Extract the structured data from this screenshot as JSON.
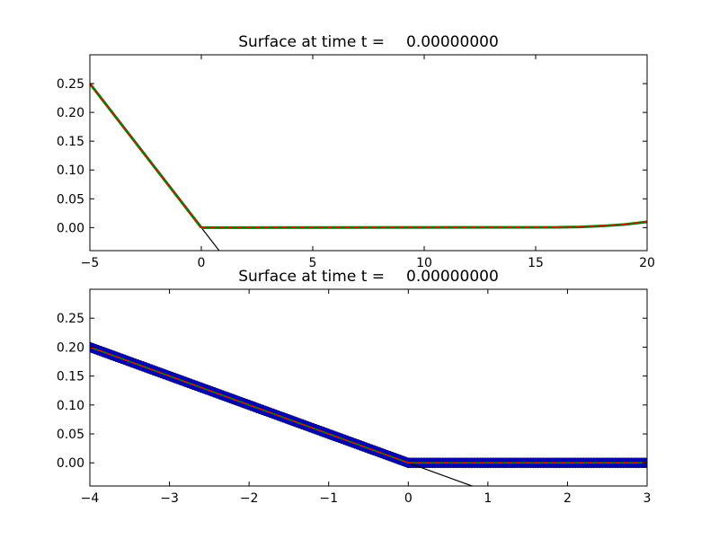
{
  "chart_data": [
    {
      "type": "line",
      "title_prefix": "Surface at time t =",
      "title_value": "0.00000000",
      "xlim": [
        -5,
        20
      ],
      "ylim": [
        -0.04,
        0.3
      ],
      "xticks": [
        -5,
        0,
        5,
        10,
        15,
        20
      ],
      "xtick_labels": [
        "−5",
        "0",
        "5",
        "10",
        "15",
        "20"
      ],
      "yticks": [
        0.0,
        0.05,
        0.1,
        0.15,
        0.2,
        0.25
      ],
      "ytick_labels": [
        "0.00",
        "0.05",
        "0.10",
        "0.15",
        "0.20",
        "0.25"
      ],
      "grid": false,
      "series": [
        {
          "color": "#000000",
          "style": "solid",
          "width": 1.2,
          "x": [
            -5,
            0.8
          ],
          "y": [
            0.25,
            -0.04
          ]
        },
        {
          "color": "#008000",
          "style": "solid",
          "width": 3,
          "x": [
            -5,
            0,
            16,
            17,
            18,
            19,
            20
          ],
          "y": [
            0.25,
            0.0,
            0.0005,
            0.0012,
            0.0028,
            0.0055,
            0.01
          ]
        },
        {
          "color": "#ff0000",
          "style": "dashed",
          "width": 1.5,
          "x": [
            -5,
            0,
            16,
            17,
            18,
            19,
            20
          ],
          "y": [
            0.25,
            0.0,
            0.0005,
            0.0012,
            0.0028,
            0.0055,
            0.01
          ]
        }
      ]
    },
    {
      "type": "line",
      "title_prefix": "Surface at time t =",
      "title_value": "0.00000000",
      "xlim": [
        -4,
        3
      ],
      "ylim": [
        -0.04,
        0.3
      ],
      "xticks": [
        -4,
        -3,
        -2,
        -1,
        0,
        1,
        2,
        3
      ],
      "xtick_labels": [
        "−4",
        "−3",
        "−2",
        "−1",
        "0",
        "1",
        "2",
        "3"
      ],
      "yticks": [
        0.0,
        0.05,
        0.1,
        0.15,
        0.2,
        0.25
      ],
      "ytick_labels": [
        "0.00",
        "0.05",
        "0.10",
        "0.15",
        "0.20",
        "0.25"
      ],
      "grid": false,
      "series": [
        {
          "color": "#0000cc",
          "style": "markers",
          "width": 1,
          "x": [
            -4,
            0,
            3
          ],
          "y": [
            0.2,
            0.0,
            0.0
          ]
        },
        {
          "color": "#000000",
          "style": "solid",
          "width": 1.2,
          "x": [
            -4,
            0.8
          ],
          "y": [
            0.2,
            -0.04
          ]
        },
        {
          "color": "#008000",
          "style": "solid",
          "width": 2,
          "x": [
            -4,
            0,
            3
          ],
          "y": [
            0.2,
            0.0,
            0.0
          ]
        },
        {
          "color": "#ff0000",
          "style": "dashed",
          "width": 1.5,
          "x": [
            -4,
            0,
            3
          ],
          "y": [
            0.2,
            0.0,
            0.0
          ]
        }
      ]
    }
  ]
}
